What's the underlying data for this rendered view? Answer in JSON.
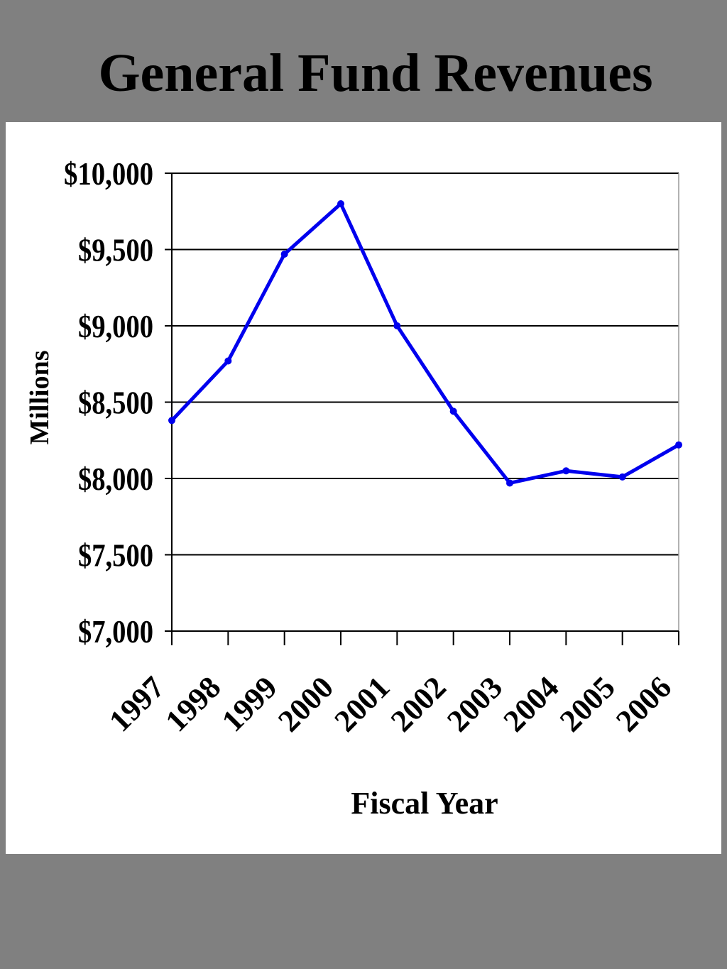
{
  "page": {
    "title": "General Fund Revenues"
  },
  "chart_data": {
    "type": "line",
    "title": "General Fund Revenues",
    "xlabel": "Fiscal Year",
    "ylabel": "Millions",
    "categories": [
      "1997",
      "1998",
      "1999",
      "2000",
      "2001",
      "2002",
      "2003",
      "2004",
      "2005",
      "2006"
    ],
    "series": [
      {
        "values": [
          8380,
          8770,
          9470,
          9800,
          9000,
          8440,
          7970,
          8050,
          8010,
          8220
        ],
        "color": "#0000ee"
      }
    ],
    "ylim": [
      7000,
      10000
    ],
    "yticks": [
      7000,
      7500,
      8000,
      8500,
      9000,
      9500,
      10000
    ],
    "ytick_labels": [
      "$7,000",
      "$7,500",
      "$8,000",
      "$8,500",
      "$9,000",
      "$9,500",
      "$10,000"
    ],
    "grid": true,
    "legend": "none",
    "colors": {
      "background": "#808080",
      "plot_background": "#ffffff",
      "line": "#0000ee",
      "gridline": "#000000"
    }
  }
}
